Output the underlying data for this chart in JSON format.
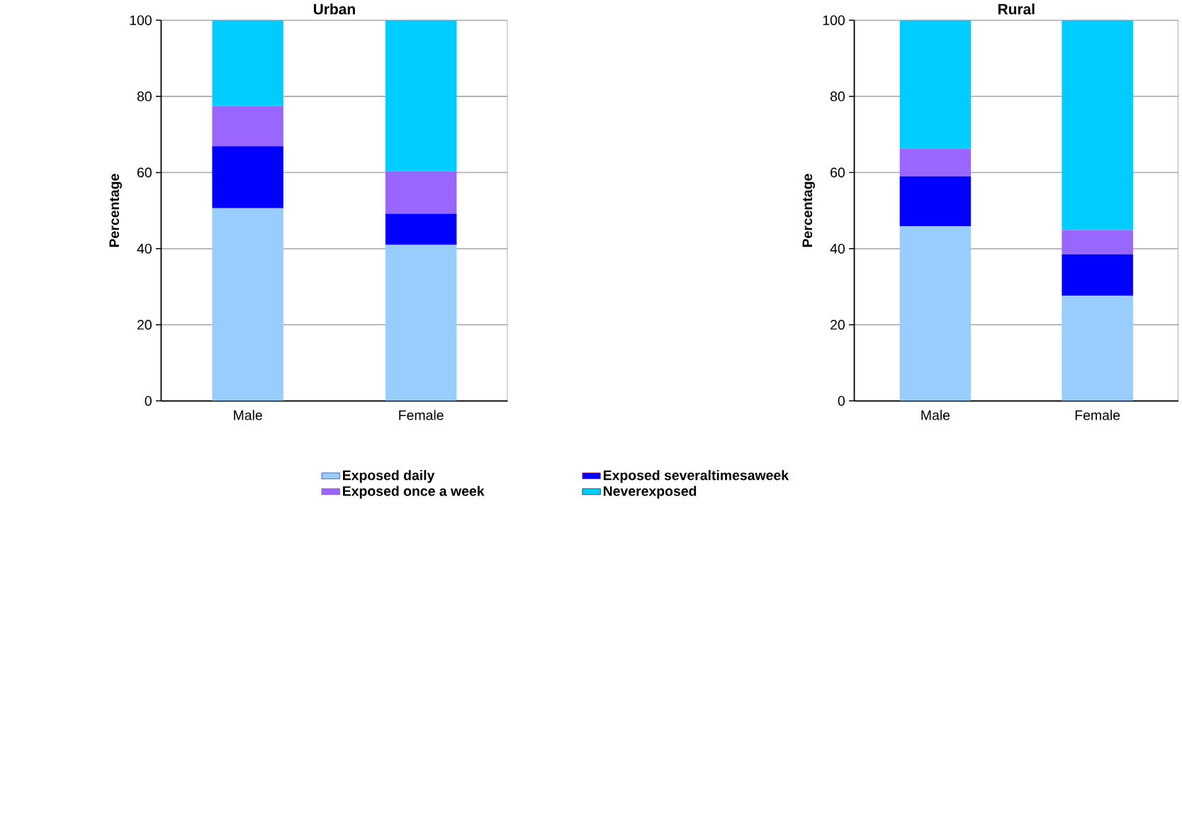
{
  "chart_data": [
    {
      "type": "bar",
      "title": "Urban",
      "ylabel": "Percentage",
      "categories": [
        "Male",
        "Female"
      ],
      "stacked": true,
      "ylim": [
        0,
        100
      ],
      "yticks": [
        0,
        20,
        40,
        60,
        80,
        100
      ],
      "grid": "y",
      "legend": "bottom",
      "series": [
        {
          "name": "Exposed daily",
          "color": "#99ccff",
          "values": [
            50.6,
            41.0
          ]
        },
        {
          "name": "Exposed severaltimesaweek",
          "color": "#0000ff",
          "values": [
            16.3,
            8.2
          ]
        },
        {
          "name": "Exposed once a week",
          "color": "#9966ff",
          "values": [
            10.6,
            11.2
          ]
        },
        {
          "name": "Neverexposed",
          "color": "#00ccff",
          "values": [
            22.5,
            39.6
          ]
        }
      ]
    },
    {
      "type": "bar",
      "title": "Rural",
      "ylabel": "Percentage",
      "categories": [
        "Male",
        "Female"
      ],
      "stacked": true,
      "ylim": [
        0,
        100
      ],
      "yticks": [
        0,
        20,
        40,
        60,
        80,
        100
      ],
      "grid": "y",
      "series": [
        {
          "color": "#99ccff",
          "values": [
            45.9,
            27.6
          ]
        },
        {
          "color": "#0000ff",
          "values": [
            13.1,
            10.9
          ]
        },
        {
          "color": "#9966ff",
          "values": [
            7.3,
            6.4
          ]
        },
        {
          "color": "#00ccff",
          "values": [
            33.7,
            55.1
          ]
        }
      ]
    }
  ]
}
